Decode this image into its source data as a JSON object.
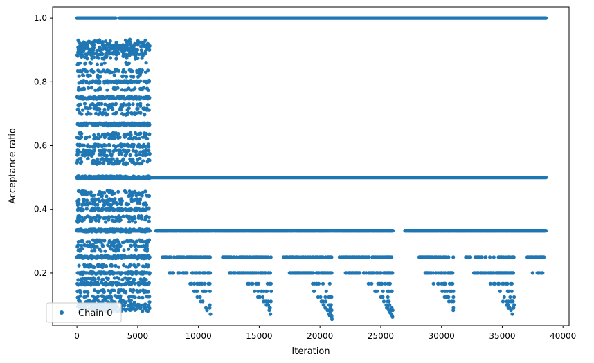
{
  "chart_data": {
    "type": "scatter",
    "title": "",
    "xlabel": "Iteration",
    "ylabel": "Acceptance ratio",
    "xlim": [
      -2000,
      40500
    ],
    "ylim": [
      0.035,
      1.035
    ],
    "xticks": [
      0,
      5000,
      10000,
      15000,
      20000,
      25000,
      30000,
      35000,
      40000
    ],
    "xtick_labels": [
      "0",
      "5000",
      "10000",
      "15000",
      "20000",
      "25000",
      "30000",
      "35000",
      "40000"
    ],
    "yticks": [
      0.2,
      0.4,
      0.6,
      0.8,
      1.0
    ],
    "ytick_labels": [
      "0.2",
      "0.4",
      "0.6",
      "0.8",
      "1.0"
    ],
    "grid": false,
    "legend": {
      "position": "bottom-left",
      "entries": [
        "Chain 0"
      ]
    },
    "series": [
      {
        "name": "Chain 0",
        "color": "#1f77b4",
        "marker": "circle",
        "bands": [
          {
            "y": 1.0,
            "x_ranges": [
              [
                0,
                3200
              ],
              [
                3500,
                6000
              ],
              [
                6000,
                38600
              ]
            ],
            "density": "solid"
          },
          {
            "y": 0.5,
            "x_ranges": [
              [
                0,
                38600
              ]
            ],
            "density": "solid"
          },
          {
            "y": 0.333,
            "x_ranges": [
              [
                0,
                6000
              ],
              [
                6500,
                26000
              ],
              [
                27000,
                38600
              ]
            ],
            "density": "dense"
          },
          {
            "y": 0.25,
            "x_ranges": [
              [
                0,
                6000
              ],
              [
                7000,
                11000
              ],
              [
                12000,
                16000
              ],
              [
                17000,
                21000
              ],
              [
                21500,
                26000
              ],
              [
                28000,
                31000
              ],
              [
                32000,
                36000
              ],
              [
                37000,
                38600
              ]
            ],
            "density": "medium"
          },
          {
            "y": 0.2,
            "x_ranges": [
              [
                0,
                6000
              ],
              [
                7500,
                11000
              ],
              [
                12500,
                16000
              ],
              [
                17500,
                21000
              ],
              [
                22000,
                26000
              ],
              [
                28500,
                31000
              ],
              [
                32500,
                36000
              ],
              [
                37500,
                38600
              ]
            ],
            "density": "medium"
          }
        ],
        "early_phase": {
          "x_range": [
            0,
            6000
          ],
          "y_range": [
            0.08,
            0.94
          ],
          "note": "scattered values between bands"
        },
        "late_clusters": [
          {
            "x_range": [
              8000,
              11000
            ],
            "y_min": 0.065
          },
          {
            "x_range": [
              13000,
              16000
            ],
            "y_min": 0.065
          },
          {
            "x_range": [
              18000,
              21000
            ],
            "y_min": 0.05
          },
          {
            "x_range": [
              23000,
              26000
            ],
            "y_min": 0.06
          },
          {
            "x_range": [
              28500,
              31000
            ],
            "y_min": 0.08
          },
          {
            "x_range": [
              33000,
              36000
            ],
            "y_min": 0.05
          }
        ]
      }
    ]
  }
}
